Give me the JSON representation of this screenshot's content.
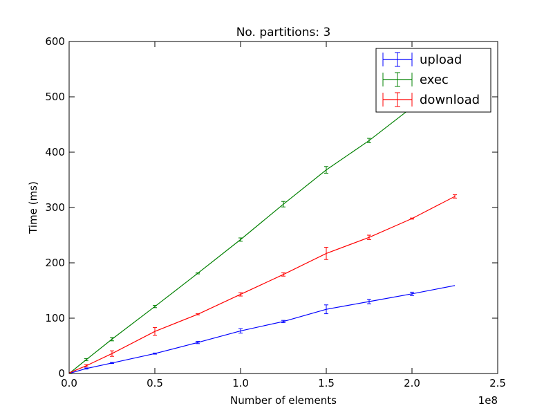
{
  "chart_data": {
    "type": "line",
    "title": "No. partitions: 3",
    "xlabel": "Number of elements",
    "ylabel": "Time (ms)",
    "x_offset_label": "1e8",
    "xlim": [
      0.0,
      2.5
    ],
    "ylim": [
      0,
      600
    ],
    "x_ticks": [
      0.0,
      0.5,
      1.0,
      1.5,
      2.0,
      2.5
    ],
    "x_tick_labels": [
      "0.0",
      "0.5",
      "1.0",
      "1.5",
      "2.0",
      "2.5"
    ],
    "y_ticks": [
      0,
      100,
      200,
      300,
      400,
      500,
      600
    ],
    "y_tick_labels": [
      "0",
      "100",
      "200",
      "300",
      "400",
      "500",
      "600"
    ],
    "grid": false,
    "legend_position": "top-right",
    "x": [
      0.0,
      0.1,
      0.25,
      0.5,
      0.75,
      1.0,
      1.25,
      1.5,
      1.75,
      2.0,
      2.25
    ],
    "series": [
      {
        "name": "upload",
        "color": "#0000ff",
        "values": [
          0,
          9,
          19,
          36,
          56,
          77,
          94,
          116,
          130,
          144,
          159
        ],
        "errors": [
          1,
          1,
          1,
          1,
          2,
          4,
          2,
          8,
          4,
          3,
          0
        ]
      },
      {
        "name": "exec",
        "color": "#008000",
        "values": [
          0,
          25,
          62,
          121,
          181,
          242,
          306,
          368,
          421,
          481,
          542
        ],
        "errors": [
          1,
          2,
          3,
          2,
          1,
          3,
          5,
          6,
          4,
          3,
          3
        ]
      },
      {
        "name": "download",
        "color": "#ff0000",
        "values": [
          1,
          14,
          36,
          76,
          107,
          143,
          179,
          217,
          246,
          280,
          320
        ],
        "errors": [
          1,
          2,
          5,
          7,
          1,
          3,
          3,
          11,
          4,
          1,
          3
        ]
      }
    ]
  }
}
